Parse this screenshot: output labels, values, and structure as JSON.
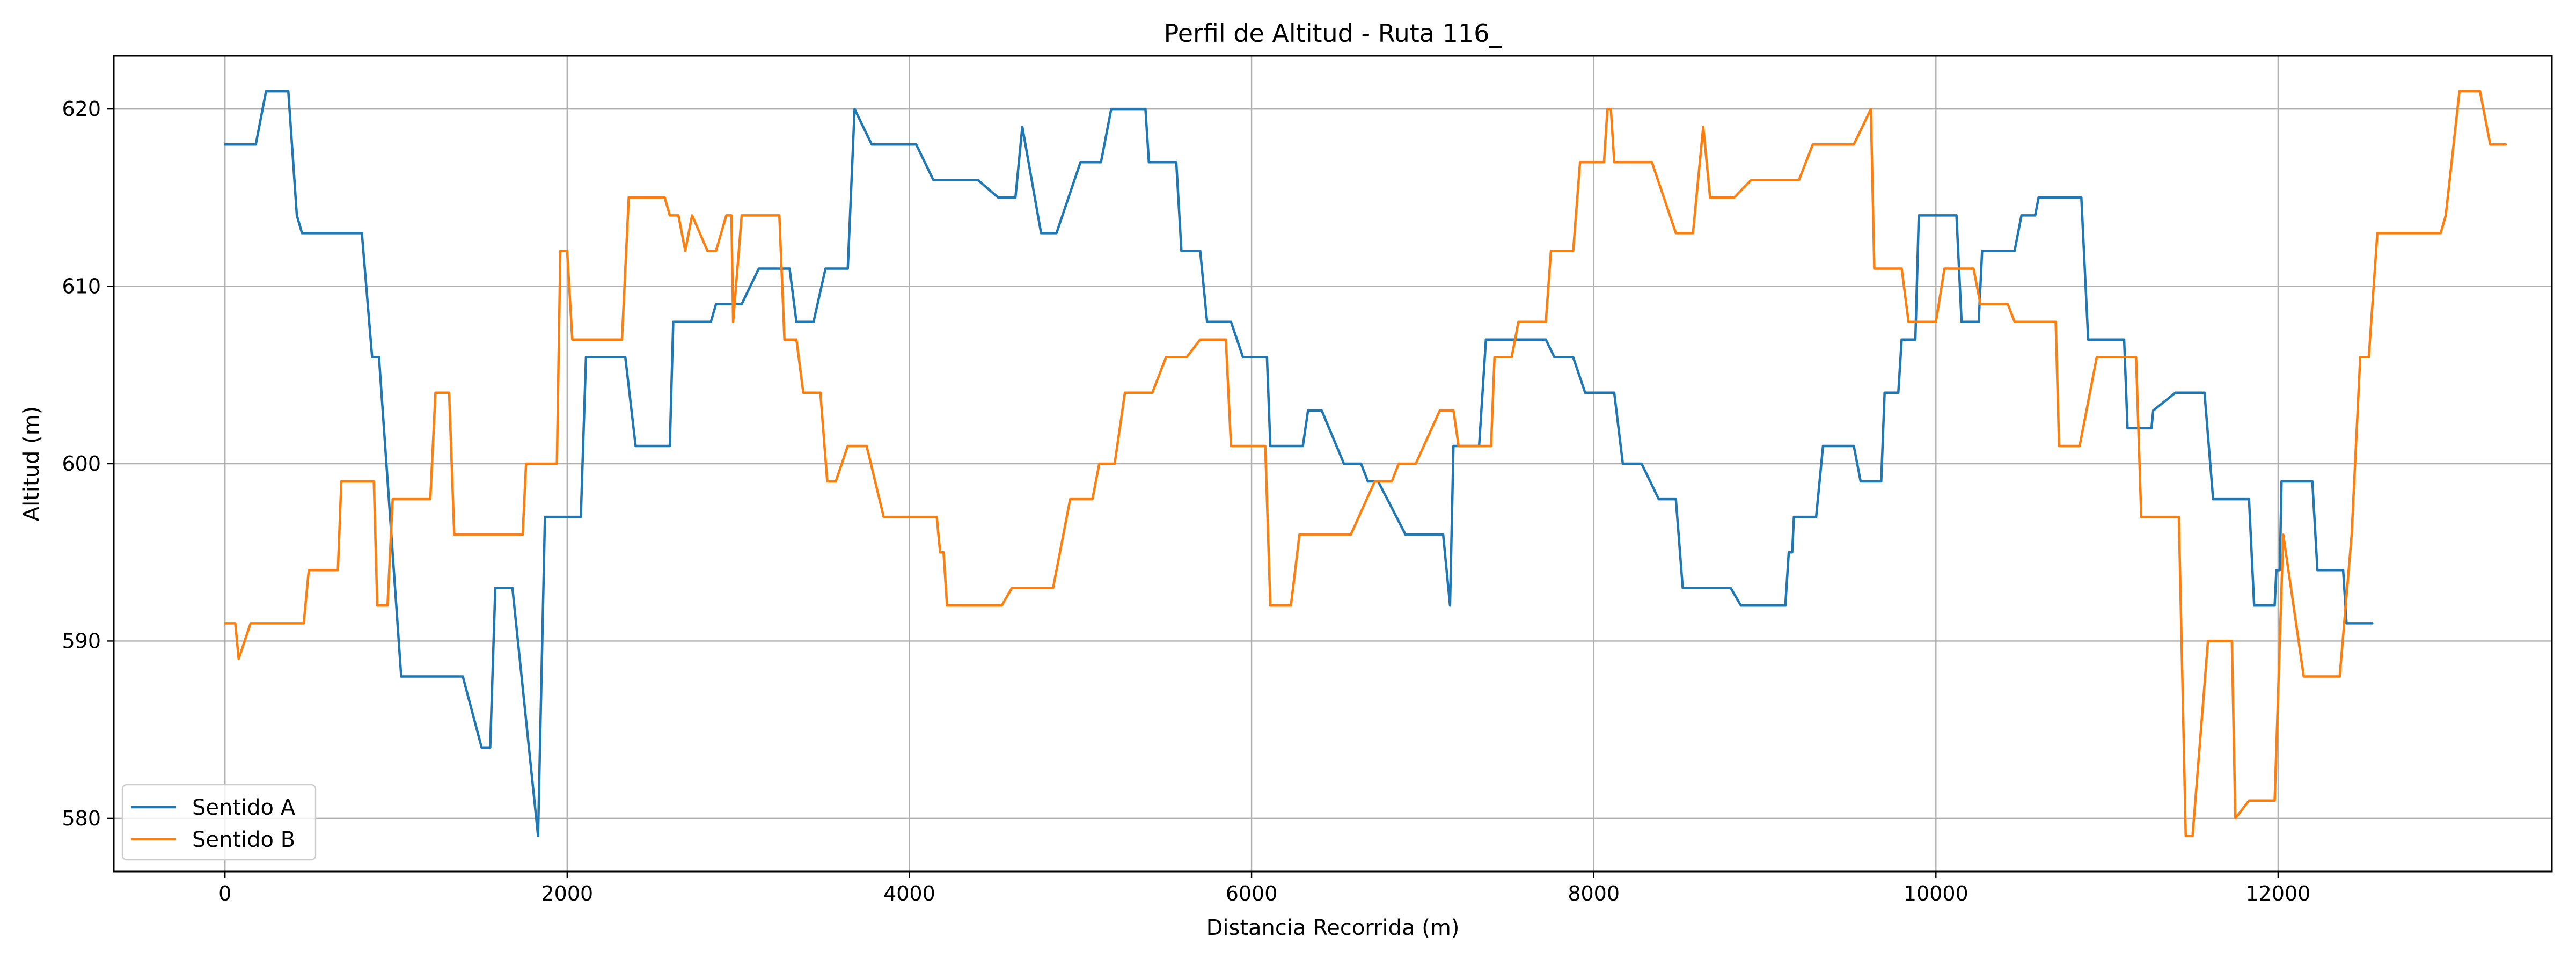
{
  "chart_data": {
    "type": "line",
    "title": "Perfil de Altitud - Ruta 116_",
    "xlabel": "Distancia Recorrida (m)",
    "ylabel": "Altitud (m)",
    "xlim": [
      -650,
      13600
    ],
    "ylim": [
      577,
      623
    ],
    "x_ticks": [
      0,
      2000,
      4000,
      6000,
      8000,
      10000,
      12000
    ],
    "y_ticks": [
      580,
      590,
      600,
      610,
      620
    ],
    "grid": true,
    "legend_position": "lower-left",
    "series": [
      {
        "name": "Sentido A",
        "color": "#1f77b4",
        "points": [
          [
            0,
            618
          ],
          [
            180,
            618
          ],
          [
            240,
            621
          ],
          [
            370,
            621
          ],
          [
            420,
            614
          ],
          [
            450,
            613
          ],
          [
            800,
            613
          ],
          [
            860,
            606
          ],
          [
            900,
            606
          ],
          [
            1030,
            588
          ],
          [
            1390,
            588
          ],
          [
            1500,
            584
          ],
          [
            1550,
            584
          ],
          [
            1580,
            593
          ],
          [
            1680,
            593
          ],
          [
            1830,
            579
          ],
          [
            1870,
            597
          ],
          [
            2080,
            597
          ],
          [
            2110,
            606
          ],
          [
            2340,
            606
          ],
          [
            2400,
            601
          ],
          [
            2600,
            601
          ],
          [
            2620,
            608
          ],
          [
            2840,
            608
          ],
          [
            2870,
            609
          ],
          [
            3020,
            609
          ],
          [
            3120,
            611
          ],
          [
            3300,
            611
          ],
          [
            3340,
            608
          ],
          [
            3440,
            608
          ],
          [
            3510,
            611
          ],
          [
            3640,
            611
          ],
          [
            3680,
            620
          ],
          [
            3780,
            618
          ],
          [
            4040,
            618
          ],
          [
            4140,
            616
          ],
          [
            4400,
            616
          ],
          [
            4520,
            615
          ],
          [
            4620,
            615
          ],
          [
            4660,
            619
          ],
          [
            4770,
            613
          ],
          [
            4860,
            613
          ],
          [
            5000,
            617
          ],
          [
            5120,
            617
          ],
          [
            5180,
            620
          ],
          [
            5380,
            620
          ],
          [
            5400,
            617
          ],
          [
            5560,
            617
          ],
          [
            5590,
            612
          ],
          [
            5700,
            612
          ],
          [
            5740,
            608
          ],
          [
            5880,
            608
          ],
          [
            5950,
            606
          ],
          [
            6090,
            606
          ],
          [
            6110,
            601
          ],
          [
            6300,
            601
          ],
          [
            6330,
            603
          ],
          [
            6410,
            603
          ],
          [
            6540,
            600
          ],
          [
            6640,
            600
          ],
          [
            6680,
            599
          ],
          [
            6740,
            599
          ],
          [
            6900,
            596
          ],
          [
            7120,
            596
          ],
          [
            7160,
            592
          ],
          [
            7180,
            601
          ],
          [
            7330,
            601
          ],
          [
            7370,
            607
          ],
          [
            7720,
            607
          ],
          [
            7770,
            606
          ],
          [
            7880,
            606
          ],
          [
            7950,
            604
          ],
          [
            8120,
            604
          ],
          [
            8170,
            600
          ],
          [
            8280,
            600
          ],
          [
            8380,
            598
          ],
          [
            8480,
            598
          ],
          [
            8520,
            593
          ],
          [
            8800,
            593
          ],
          [
            8860,
            592
          ],
          [
            9120,
            592
          ],
          [
            9140,
            595
          ],
          [
            9160,
            595
          ],
          [
            9170,
            597
          ],
          [
            9300,
            597
          ],
          [
            9340,
            601
          ],
          [
            9520,
            601
          ],
          [
            9560,
            599
          ],
          [
            9680,
            599
          ],
          [
            9700,
            604
          ],
          [
            9780,
            604
          ],
          [
            9800,
            607
          ],
          [
            9880,
            607
          ],
          [
            9900,
            614
          ],
          [
            10120,
            614
          ],
          [
            10150,
            608
          ],
          [
            10250,
            608
          ],
          [
            10270,
            612
          ],
          [
            10460,
            612
          ],
          [
            10500,
            614
          ],
          [
            10580,
            614
          ],
          [
            10600,
            615
          ],
          [
            10850,
            615
          ],
          [
            10890,
            607
          ],
          [
            11100,
            607
          ],
          [
            11120,
            602
          ],
          [
            11260,
            602
          ],
          [
            11270,
            603
          ],
          [
            11400,
            604
          ],
          [
            11570,
            604
          ],
          [
            11620,
            598
          ],
          [
            11830,
            598
          ],
          [
            11860,
            592
          ],
          [
            11980,
            592
          ],
          [
            11990,
            594
          ],
          [
            12010,
            594
          ],
          [
            12020,
            599
          ],
          [
            12200,
            599
          ],
          [
            12230,
            594
          ],
          [
            12380,
            594
          ],
          [
            12400,
            591
          ],
          [
            12550,
            591
          ]
        ]
      },
      {
        "name": "Sentido B",
        "color": "#ff7f0e",
        "points": [
          [
            0,
            591
          ],
          [
            60,
            591
          ],
          [
            80,
            589
          ],
          [
            150,
            591
          ],
          [
            460,
            591
          ],
          [
            490,
            594
          ],
          [
            660,
            594
          ],
          [
            680,
            599
          ],
          [
            870,
            599
          ],
          [
            890,
            592
          ],
          [
            950,
            592
          ],
          [
            980,
            598
          ],
          [
            1200,
            598
          ],
          [
            1230,
            604
          ],
          [
            1310,
            604
          ],
          [
            1340,
            596
          ],
          [
            1740,
            596
          ],
          [
            1760,
            600
          ],
          [
            1940,
            600
          ],
          [
            1960,
            612
          ],
          [
            2000,
            612
          ],
          [
            2030,
            607
          ],
          [
            2320,
            607
          ],
          [
            2360,
            615
          ],
          [
            2570,
            615
          ],
          [
            2600,
            614
          ],
          [
            2650,
            614
          ],
          [
            2690,
            612
          ],
          [
            2730,
            614
          ],
          [
            2820,
            612
          ],
          [
            2870,
            612
          ],
          [
            2930,
            614
          ],
          [
            2960,
            614
          ],
          [
            2970,
            608
          ],
          [
            3020,
            614
          ],
          [
            3240,
            614
          ],
          [
            3270,
            607
          ],
          [
            3340,
            607
          ],
          [
            3380,
            604
          ],
          [
            3480,
            604
          ],
          [
            3520,
            599
          ],
          [
            3570,
            599
          ],
          [
            3640,
            601
          ],
          [
            3750,
            601
          ],
          [
            3850,
            597
          ],
          [
            4160,
            597
          ],
          [
            4180,
            595
          ],
          [
            4200,
            595
          ],
          [
            4220,
            592
          ],
          [
            4540,
            592
          ],
          [
            4600,
            593
          ],
          [
            4840,
            593
          ],
          [
            4940,
            598
          ],
          [
            5070,
            598
          ],
          [
            5110,
            600
          ],
          [
            5200,
            600
          ],
          [
            5260,
            604
          ],
          [
            5420,
            604
          ],
          [
            5500,
            606
          ],
          [
            5620,
            606
          ],
          [
            5700,
            607
          ],
          [
            5850,
            607
          ],
          [
            5880,
            601
          ],
          [
            6080,
            601
          ],
          [
            6110,
            592
          ],
          [
            6230,
            592
          ],
          [
            6280,
            596
          ],
          [
            6580,
            596
          ],
          [
            6720,
            599
          ],
          [
            6820,
            599
          ],
          [
            6860,
            600
          ],
          [
            6960,
            600
          ],
          [
            7100,
            603
          ],
          [
            7180,
            603
          ],
          [
            7210,
            601
          ],
          [
            7400,
            601
          ],
          [
            7420,
            606
          ],
          [
            7520,
            606
          ],
          [
            7560,
            608
          ],
          [
            7720,
            608
          ],
          [
            7750,
            612
          ],
          [
            7880,
            612
          ],
          [
            7920,
            617
          ],
          [
            8060,
            617
          ],
          [
            8080,
            620
          ],
          [
            8100,
            620
          ],
          [
            8120,
            617
          ],
          [
            8340,
            617
          ],
          [
            8480,
            613
          ],
          [
            8580,
            613
          ],
          [
            8640,
            619
          ],
          [
            8680,
            615
          ],
          [
            8820,
            615
          ],
          [
            8920,
            616
          ],
          [
            9200,
            616
          ],
          [
            9280,
            618
          ],
          [
            9520,
            618
          ],
          [
            9620,
            620
          ],
          [
            9640,
            611
          ],
          [
            9800,
            611
          ],
          [
            9840,
            608
          ],
          [
            10000,
            608
          ],
          [
            10050,
            611
          ],
          [
            10220,
            611
          ],
          [
            10260,
            609
          ],
          [
            10420,
            609
          ],
          [
            10460,
            608
          ],
          [
            10700,
            608
          ],
          [
            10720,
            601
          ],
          [
            10840,
            601
          ],
          [
            10940,
            606
          ],
          [
            11170,
            606
          ],
          [
            11200,
            597
          ],
          [
            11420,
            597
          ],
          [
            11460,
            579
          ],
          [
            11500,
            579
          ],
          [
            11590,
            590
          ],
          [
            11730,
            590
          ],
          [
            11750,
            580
          ],
          [
            11830,
            581
          ],
          [
            11980,
            581
          ],
          [
            12030,
            596
          ],
          [
            12150,
            588
          ],
          [
            12360,
            588
          ],
          [
            12430,
            596
          ],
          [
            12480,
            606
          ],
          [
            12530,
            606
          ],
          [
            12580,
            613
          ],
          [
            12950,
            613
          ],
          [
            12980,
            614
          ],
          [
            13060,
            621
          ],
          [
            13180,
            621
          ],
          [
            13240,
            618
          ],
          [
            13330,
            618
          ]
        ]
      }
    ]
  }
}
